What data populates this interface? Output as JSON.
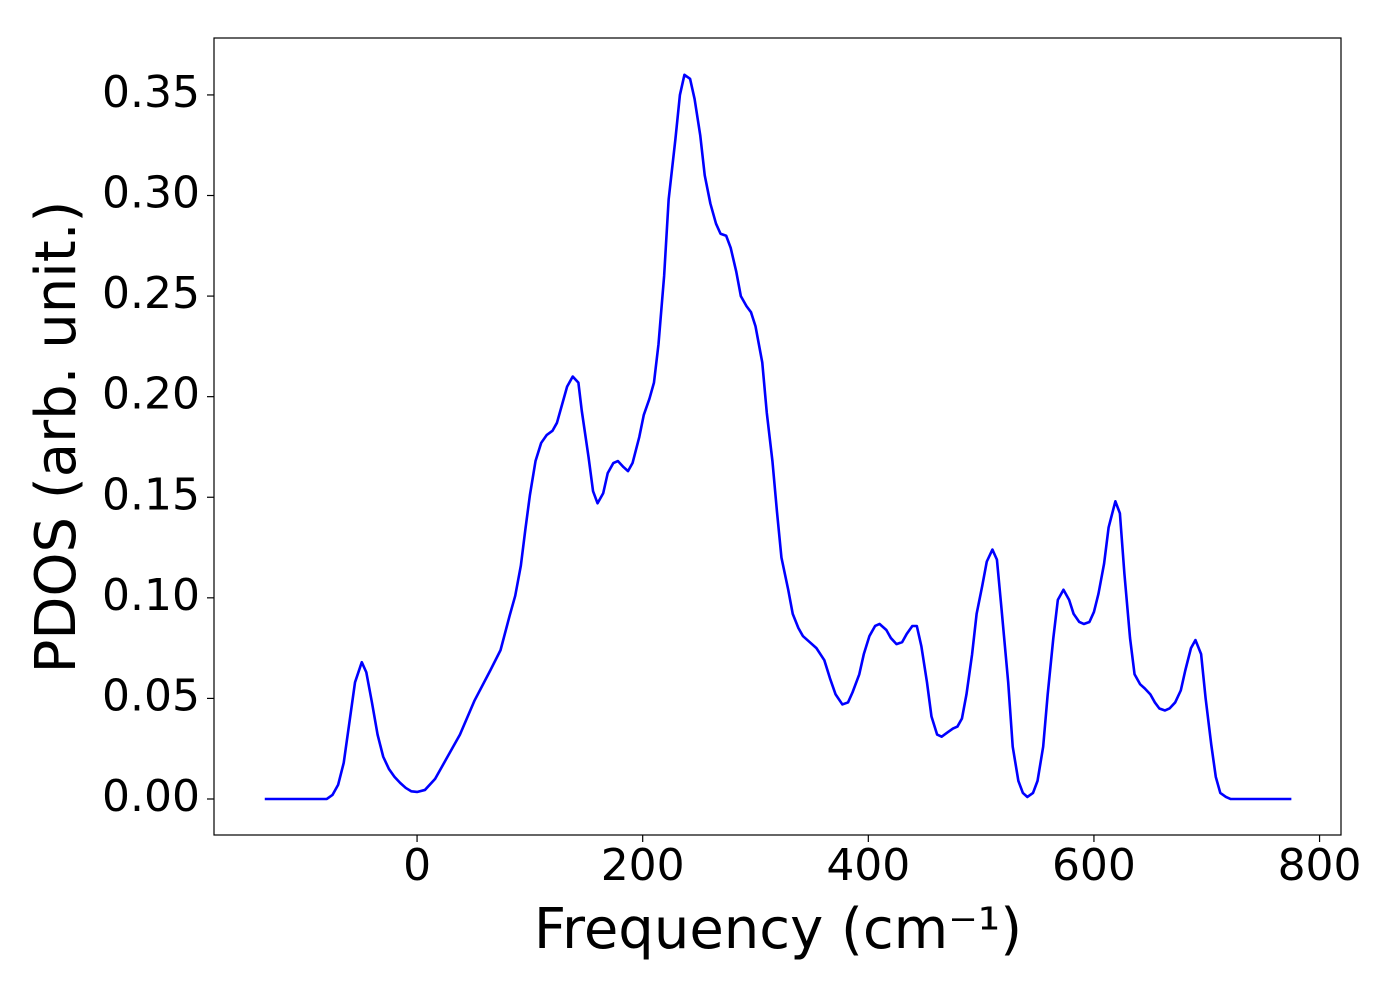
{
  "chart_data": {
    "type": "line",
    "xlabel": "Frequency (cm⁻¹)",
    "ylabel": "PDOS (arb. unit.)",
    "x": [
      -135,
      -80,
      -75,
      -70,
      -65,
      -60,
      -55,
      -49,
      -45,
      -40,
      -35,
      -30,
      -25,
      -20,
      -15,
      -10,
      -5,
      0,
      7,
      16,
      25,
      38,
      51,
      65,
      74,
      82,
      87,
      92,
      96,
      100,
      105,
      110,
      115,
      120,
      124,
      128,
      133,
      138,
      143,
      146,
      152,
      156,
      160,
      165,
      169,
      174,
      178,
      183,
      187,
      191,
      197,
      201,
      206,
      210,
      214,
      219,
      223,
      229,
      233,
      237,
      242,
      246,
      251,
      255,
      260,
      265,
      269,
      274,
      278,
      283,
      287,
      292,
      296,
      300,
      306,
      310,
      315,
      319,
      323,
      329,
      333,
      338,
      342,
      348,
      354,
      361,
      366,
      371,
      377,
      382,
      386,
      392,
      396,
      401,
      406,
      410,
      416,
      420,
      425,
      430,
      434,
      439,
      443,
      447,
      452,
      456,
      461,
      465,
      470,
      475,
      479,
      483,
      487,
      492,
      496,
      501,
      505,
      510,
      514,
      518,
      524,
      528,
      533,
      537,
      541,
      546,
      550,
      555,
      559,
      564,
      568,
      573,
      578,
      582,
      587,
      591,
      596,
      600,
      604,
      609,
      613,
      619,
      623,
      627,
      632,
      636,
      641,
      645,
      650,
      654,
      658,
      663,
      667,
      672,
      677,
      681,
      686,
      690,
      695,
      699,
      704,
      708,
      712,
      717,
      721,
      775
    ],
    "series": [
      {
        "name": "PDOS",
        "color": "#0000ff",
        "values": [
          0,
          0,
          0.002,
          0.007,
          0.018,
          0.038,
          0.058,
          0.068,
          0.063,
          0.048,
          0.032,
          0.021,
          0.015,
          0.011,
          0.008,
          0.0055,
          0.0038,
          0.0035,
          0.0045,
          0.01,
          0.019,
          0.032,
          0.049,
          0.064,
          0.074,
          0.091,
          0.101,
          0.116,
          0.134,
          0.151,
          0.168,
          0.177,
          0.181,
          0.183,
          0.187,
          0.195,
          0.205,
          0.21,
          0.207,
          0.193,
          0.17,
          0.153,
          0.147,
          0.152,
          0.162,
          0.167,
          0.168,
          0.165,
          0.163,
          0.167,
          0.18,
          0.191,
          0.199,
          0.207,
          0.226,
          0.26,
          0.298,
          0.328,
          0.35,
          0.36,
          0.358,
          0.348,
          0.33,
          0.31,
          0.296,
          0.286,
          0.281,
          0.28,
          0.274,
          0.262,
          0.25,
          0.245,
          0.242,
          0.235,
          0.217,
          0.192,
          0.168,
          0.143,
          0.12,
          0.104,
          0.092,
          0.085,
          0.081,
          0.078,
          0.075,
          0.069,
          0.06,
          0.052,
          0.047,
          0.048,
          0.053,
          0.062,
          0.072,
          0.081,
          0.086,
          0.087,
          0.084,
          0.08,
          0.077,
          0.078,
          0.082,
          0.086,
          0.086,
          0.076,
          0.058,
          0.041,
          0.032,
          0.031,
          0.033,
          0.035,
          0.036,
          0.04,
          0.052,
          0.072,
          0.092,
          0.106,
          0.118,
          0.124,
          0.119,
          0.095,
          0.058,
          0.026,
          0.009,
          0.003,
          0.001,
          0.003,
          0.009,
          0.026,
          0.052,
          0.08,
          0.099,
          0.104,
          0.099,
          0.092,
          0.088,
          0.087,
          0.088,
          0.093,
          0.102,
          0.117,
          0.135,
          0.148,
          0.142,
          0.112,
          0.08,
          0.062,
          0.057,
          0.055,
          0.052,
          0.048,
          0.045,
          0.044,
          0.045,
          0.048,
          0.054,
          0.064,
          0.075,
          0.079,
          0.072,
          0.05,
          0.027,
          0.011,
          0.003,
          0.001,
          0,
          0
        ]
      }
    ],
    "xlim": [
      -180,
      819
    ],
    "xticks": [
      0,
      200,
      400,
      600,
      800
    ],
    "ylim": [
      -0.0179,
      0.3783
    ],
    "yticks": [
      {
        "value": 0,
        "label": "0.00"
      },
      0.05,
      {
        "value": 0.1,
        "label": "0.10"
      },
      0.15,
      {
        "value": 0.2,
        "label": "0.20"
      },
      0.25,
      {
        "value": 0.3,
        "label": "0.30"
      },
      0.35
    ],
    "grid": false
  }
}
